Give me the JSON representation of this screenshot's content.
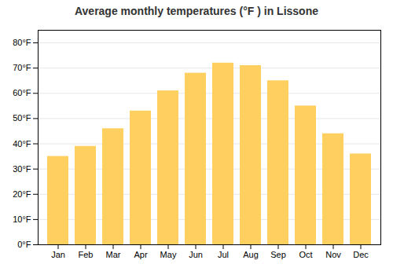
{
  "chart_data": {
    "type": "bar",
    "title": "Average monthly temperatures (°F ) in Lissone",
    "categories": [
      "Jan",
      "Feb",
      "Mar",
      "Apr",
      "May",
      "Jun",
      "Jul",
      "Aug",
      "Sep",
      "Oct",
      "Nov",
      "Dec"
    ],
    "values": [
      35,
      39,
      46,
      53,
      61,
      68,
      72,
      71,
      65,
      55,
      44,
      36
    ],
    "color": "#FFD060",
    "ylim": [
      0,
      85
    ],
    "yticks": [
      {
        "value": 0,
        "label": "0°F"
      },
      {
        "value": 10,
        "label": "10°F"
      },
      {
        "value": 20,
        "label": "20°F"
      },
      {
        "value": 30,
        "label": "30°F"
      },
      {
        "value": 40,
        "label": "40°F"
      },
      {
        "value": 50,
        "label": "50°F"
      },
      {
        "value": 60,
        "label": "60°F"
      },
      {
        "value": 70,
        "label": "70°F"
      },
      {
        "value": 80,
        "label": "80°F"
      }
    ],
    "grid": true
  }
}
